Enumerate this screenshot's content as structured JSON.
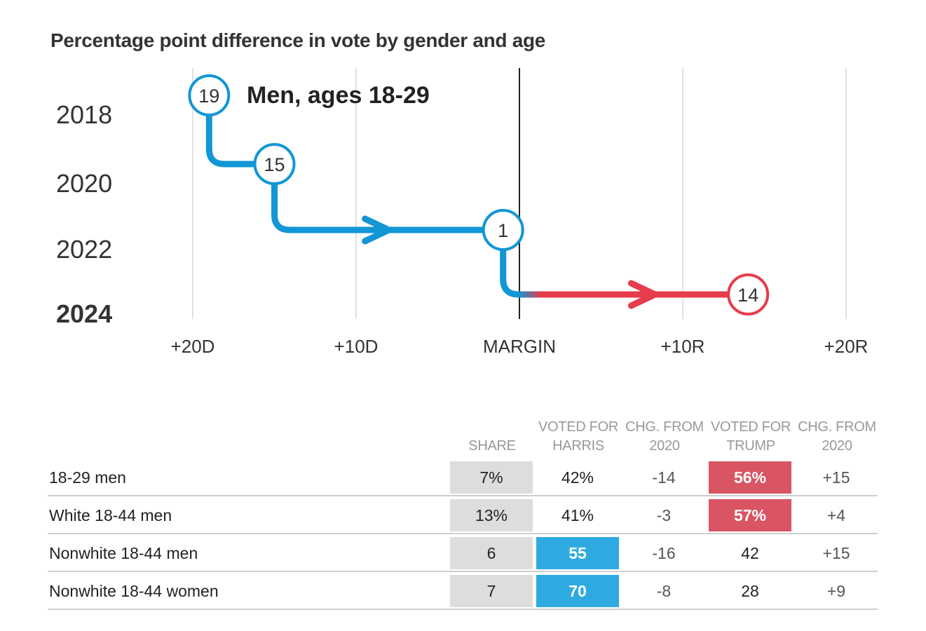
{
  "title": "Percentage point difference in vote by gender and age",
  "chart_data": {
    "type": "line",
    "series_label": "Men, ages 18-29",
    "y_categories": [
      "2018",
      "2020",
      "2022",
      "2024"
    ],
    "x_ticks": [
      {
        "value": -20,
        "label": "+20D"
      },
      {
        "value": -10,
        "label": "+10D"
      },
      {
        "value": 0,
        "label": "MARGIN"
      },
      {
        "value": 10,
        "label": "+10R"
      },
      {
        "value": 20,
        "label": "+20R"
      }
    ],
    "xlim": [
      -20,
      20
    ],
    "points": [
      {
        "year": "2018",
        "margin": -19,
        "label": "19",
        "party": "D"
      },
      {
        "year": "2020",
        "margin": -15,
        "label": "15",
        "party": "D"
      },
      {
        "year": "2022",
        "margin": -1,
        "label": "1",
        "party": "D"
      },
      {
        "year": "2024",
        "margin": 14,
        "label": "14",
        "party": "R"
      }
    ],
    "colors": {
      "dem": "#1296d6",
      "rep": "#e63c4b",
      "axis": "#222222",
      "grid": "#e2e2e2"
    }
  },
  "table": {
    "headers": {
      "share": "SHARE",
      "harris": [
        "VOTED FOR",
        "HARRIS"
      ],
      "chg_harris": [
        "CHG. FROM",
        "2020"
      ],
      "trump": [
        "VOTED FOR",
        "TRUMP"
      ],
      "chg_trump": [
        "CHG. FROM",
        "2020"
      ]
    },
    "rows": [
      {
        "label": "18-29 men",
        "share": "7%",
        "harris": "42%",
        "chg_harris": "-14",
        "trump": "56%",
        "chg_trump": "+15",
        "highlight": "trump"
      },
      {
        "label": "White 18-44 men",
        "share": "13%",
        "harris": "41%",
        "chg_harris": "-3",
        "trump": "57%",
        "chg_trump": "+4",
        "highlight": "trump"
      },
      {
        "label": "Nonwhite 18-44 men",
        "share": "6",
        "harris": "55",
        "chg_harris": "-16",
        "trump": "42",
        "chg_trump": "+15",
        "highlight": "harris"
      },
      {
        "label": "Nonwhite 18-44 women",
        "share": "7",
        "harris": "70",
        "chg_harris": "-8",
        "trump": "28",
        "chg_trump": "+9",
        "highlight": "harris"
      }
    ]
  }
}
